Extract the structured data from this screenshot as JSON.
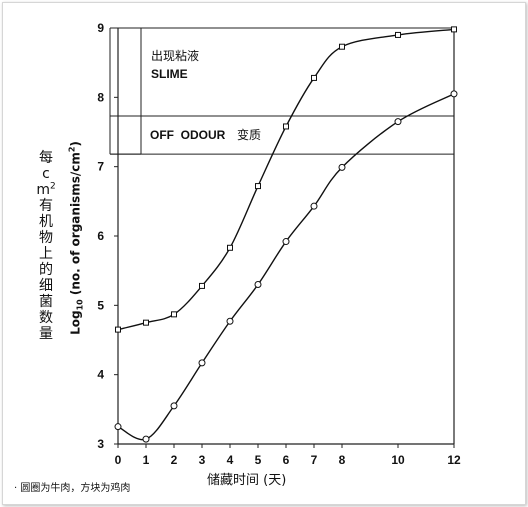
{
  "chart_data": {
    "type": "line",
    "title": "",
    "xlabel": "储藏时间 (天)",
    "ylabel_chinese": "每cm",
    "ylabel_chinese_sup": "2",
    "ylabel_chinese_rest": "有机物上的细菌数量",
    "ylabel_english": {
      "pre": "Log",
      "sub": "10",
      "mid": " (no. of organisms/cm",
      "sup": "2",
      "post": ")"
    },
    "xlim": [
      0,
      12
    ],
    "ylim": [
      3,
      9
    ],
    "x_ticks": [
      0,
      1,
      2,
      3,
      4,
      5,
      6,
      7,
      8,
      10,
      12
    ],
    "y_ticks": [
      3,
      4,
      5,
      6,
      7,
      8,
      9
    ],
    "series": [
      {
        "marker": "square",
        "x": [
          0,
          1,
          2,
          3,
          4,
          5,
          6,
          7,
          8,
          10,
          12
        ],
        "y": [
          4.65,
          4.75,
          4.87,
          5.28,
          5.83,
          6.72,
          7.58,
          8.28,
          8.73,
          8.9,
          8.98
        ]
      },
      {
        "marker": "circle",
        "x": [
          0,
          1,
          2,
          3,
          4,
          5,
          6,
          7,
          8,
          10,
          12
        ],
        "y": [
          3.25,
          3.07,
          3.55,
          4.17,
          4.77,
          5.3,
          5.92,
          6.43,
          6.99,
          7.65,
          8.05
        ]
      }
    ],
    "annotations": {
      "slime_cn": "出现粘液",
      "slime_en": "SLIME",
      "odour_en": "OFF  ODOUR",
      "odour_cn": "变质",
      "slime_level": 9,
      "odour_upper": 7.73,
      "odour_lower": 7.18
    },
    "note": "· 圆圈为牛肉，方块为鸡肉"
  }
}
